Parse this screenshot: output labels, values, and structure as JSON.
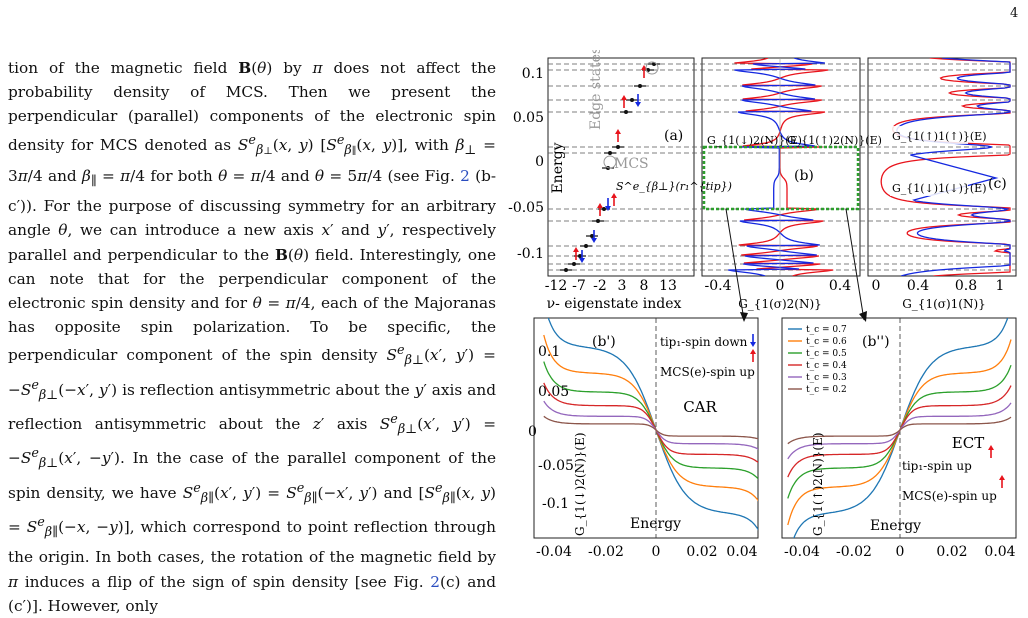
{
  "page_number": "4",
  "body_text": "tion of the magnetic field B(θ) by π does not affect the probability density of MCS. Then we present the perpendicular (parallel) components of the electronic spin density for MCS denoted as S^e_{β⊥}(x,y) [S^e_{β∥}(x,y)], with β⊥ = 3π/4 and β∥ = π/4 for both θ = π/4 and θ = 5π/4 (see Fig. 2 (b-c')). For the purpose of discussing symmetry for an arbitrary angle θ, we can introduce a new axis x′ and y′, respectively parallel and perpendicular to the B(θ) field. Interestingly, one can note that for the perpendicular component of the electronic spin density and for θ = π/4, each of the Majoranas has opposite spin polarization. To be specific, the perpendicular component of the spin density S^e_{β⊥}(x′,y′) = −S^e_{β⊥}(−x′,y′) is reflection antisymmetric about the y′ axis and reflection antisymmetric about the z′ axis S^e_{β⊥}(x′,y′) = −S^e_{β⊥}(x′,−y′). In the case of the parallel component of the spin density, we have S^e_{β∥}(x′,y′) = S^e_{β∥}(−x′,y′) and [S^e_{β∥}(x,y) = S^e_{β∥}(−x,−y)], which correspond to point reflection through the origin. In both cases, the rotation of the magnetic field by π induces a flip of the sign of spin density [see Fig. 2(c) and (c′)]. However, only",
  "figure": {
    "panel_a": {
      "label": "(a)",
      "ylabel": "Energy",
      "xlabel": "ν- eigenstate index",
      "xticks": [
        "-12",
        "-7",
        "-2",
        "3",
        "8",
        "13"
      ],
      "yticks": [
        "0.1",
        "0.05",
        "0",
        "-0.05",
        "-0.1"
      ],
      "annot_edge": "Edge states",
      "annot_mcs": "MCS",
      "annot_s": "S^e_{β⊥}(r₁^{tip})"
    },
    "panel_b": {
      "label": "(b)",
      "xlabel": "G_{1(σ)2(N)}",
      "xticks": [
        "-0.4",
        "0",
        "0.4"
      ],
      "curve_left": "G_{1(↓)2(N)}(E)",
      "curve_right": "G_{1(↑)2(N)}(E)"
    },
    "panel_c": {
      "label": "(c)",
      "xlabel": "G_{1(σ)1(N)}",
      "xticks": [
        "0",
        "0.4",
        "0.8",
        "1"
      ],
      "curve_upper": "G_{1(↑)1(↑)}(E)",
      "curve_lower": "G_{1(↓)1(↓)}(E)"
    },
    "panel_b1": {
      "label": "(b')",
      "ylabel": "G_{1(↓)2(N)}(E)",
      "xlabel": "Energy",
      "xticks": [
        "-0.04",
        "-0.02",
        "0",
        "0.02",
        "0.04"
      ],
      "yticks": [
        "0.1",
        "0.05",
        "0",
        "-0.05",
        "-0.1"
      ],
      "tip_text": "tip₁-spin down",
      "mcs_text": "MCS(e)-spin up",
      "process": "CAR"
    },
    "panel_b2": {
      "label": "(b'')",
      "ylabel": "G_{1(↑)2(N)}(E)",
      "xlabel": "Energy",
      "xticks": [
        "-0.04",
        "-0.02",
        "0",
        "0.02",
        "0.04"
      ],
      "process": "ECT",
      "tip_text": "tip₁-spin up",
      "mcs_text": "MCS(e)-spin up",
      "legend": [
        {
          "label": "t_c = 0.7",
          "color": "#1f77b4"
        },
        {
          "label": "t_c = 0.6",
          "color": "#ff7f0e"
        },
        {
          "label": "t_c = 0.5",
          "color": "#2ca02c"
        },
        {
          "label": "t_c = 0.4",
          "color": "#d62728"
        },
        {
          "label": "t_c = 0.3",
          "color": "#9467bd"
        },
        {
          "label": "t_c = 0.2",
          "color": "#8c564b"
        }
      ]
    },
    "colors": {
      "spin_up": "#e8141c",
      "spin_down": "#1428e0",
      "highlight": "#2e9e2e"
    }
  }
}
